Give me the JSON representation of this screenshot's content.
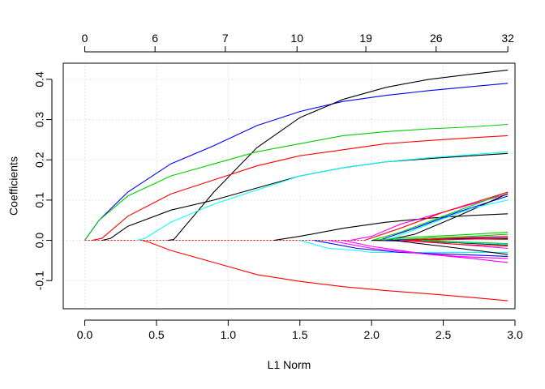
{
  "chart_data": {
    "type": "line",
    "title": "",
    "xlabel": "L1 Norm",
    "ylabel": "Coefficients",
    "xlim": [
      -0.15,
      3.0
    ],
    "ylim": [
      -0.17,
      0.44
    ],
    "grid": true,
    "x_ticks": [
      {
        "value": 0.0,
        "label": "0.0"
      },
      {
        "value": 0.5,
        "label": "0.5"
      },
      {
        "value": 1.0,
        "label": "1.0"
      },
      {
        "value": 1.5,
        "label": "1.5"
      },
      {
        "value": 2.0,
        "label": "2.0"
      },
      {
        "value": 2.5,
        "label": "2.5"
      },
      {
        "value": 3.0,
        "label": "3.0"
      }
    ],
    "y_ticks": [
      {
        "value": -0.1,
        "label": "-0.1"
      },
      {
        "value": 0.0,
        "label": "0.0"
      },
      {
        "value": 0.1,
        "label": "0.1"
      },
      {
        "value": 0.2,
        "label": "0.2"
      },
      {
        "value": 0.3,
        "label": "0.3"
      },
      {
        "value": 0.4,
        "label": "0.4"
      }
    ],
    "top_ticks": [
      {
        "value": 0.0,
        "label": "0"
      },
      {
        "value": 0.49,
        "label": "6"
      },
      {
        "value": 0.98,
        "label": "7"
      },
      {
        "value": 1.48,
        "label": "10"
      },
      {
        "value": 1.96,
        "label": "19"
      },
      {
        "value": 2.45,
        "label": "26"
      },
      {
        "value": 2.95,
        "label": "32"
      }
    ],
    "series": [
      {
        "color": "#0000ff",
        "x": [
          0,
          0.1,
          0.3,
          0.6,
          0.9,
          1.2,
          1.5,
          1.8,
          2.1,
          2.4,
          2.7,
          2.95
        ],
        "y": [
          0,
          0.05,
          0.12,
          0.19,
          0.235,
          0.285,
          0.32,
          0.345,
          0.36,
          0.372,
          0.382,
          0.39
        ]
      },
      {
        "color": "#000000",
        "x": [
          0.58,
          0.62,
          0.9,
          1.2,
          1.5,
          1.8,
          2.1,
          2.4,
          2.7,
          2.95
        ],
        "y": [
          0,
          0.002,
          0.12,
          0.23,
          0.305,
          0.35,
          0.38,
          0.4,
          0.413,
          0.423
        ]
      },
      {
        "color": "#00cd00",
        "x": [
          0,
          0.1,
          0.3,
          0.6,
          0.9,
          1.2,
          1.5,
          1.8,
          2.1,
          2.4,
          2.7,
          2.95
        ],
        "y": [
          0,
          0.05,
          0.11,
          0.16,
          0.19,
          0.22,
          0.24,
          0.26,
          0.27,
          0.277,
          0.282,
          0.288
        ]
      },
      {
        "color": "#ff0000",
        "x": [
          0.05,
          0.12,
          0.3,
          0.6,
          0.9,
          1.2,
          1.5,
          1.8,
          2.1,
          2.4,
          2.7,
          2.95
        ],
        "y": [
          0,
          0.005,
          0.06,
          0.115,
          0.15,
          0.185,
          0.21,
          0.225,
          0.24,
          0.248,
          0.255,
          0.26
        ]
      },
      {
        "color": "#000000",
        "x": [
          0.12,
          0.18,
          0.3,
          0.6,
          0.9,
          1.2,
          1.5,
          1.8,
          2.1,
          2.4,
          2.7,
          2.95
        ],
        "y": [
          0,
          0.005,
          0.035,
          0.075,
          0.1,
          0.13,
          0.16,
          0.18,
          0.195,
          0.203,
          0.21,
          0.216
        ]
      },
      {
        "color": "#00ffff",
        "x": [
          0.36,
          0.42,
          0.6,
          0.9,
          1.2,
          1.5,
          1.8,
          2.1,
          2.4,
          2.7,
          2.95
        ],
        "y": [
          0,
          0.005,
          0.045,
          0.09,
          0.125,
          0.16,
          0.18,
          0.195,
          0.205,
          0.213,
          0.22
        ]
      },
      {
        "color": "#ff0000",
        "x": [
          0.4,
          0.45,
          0.6,
          0.9,
          1.2,
          1.5,
          1.8,
          2.1,
          2.4,
          2.7,
          2.95
        ],
        "y": [
          0,
          -0.005,
          -0.025,
          -0.055,
          -0.085,
          -0.102,
          -0.115,
          -0.125,
          -0.133,
          -0.142,
          -0.15
        ]
      },
      {
        "color": "#000000",
        "x": [
          1.32,
          1.5,
          1.8,
          2.1,
          2.4,
          2.7,
          2.95
        ],
        "y": [
          0,
          0.01,
          0.03,
          0.045,
          0.055,
          0.062,
          0.066
        ]
      },
      {
        "color": "#00ffff",
        "x": [
          1.5,
          1.7,
          1.9,
          2.0,
          2.3,
          2.6,
          2.95
        ],
        "y": [
          0,
          -0.02,
          -0.025,
          -0.03,
          -0.03,
          -0.03,
          -0.03
        ]
      },
      {
        "color": "#ff00ff",
        "x": [
          1.85,
          2.0,
          2.2,
          2.4,
          2.6,
          2.8,
          2.95
        ],
        "y": [
          0,
          0.01,
          0.04,
          0.06,
          0.08,
          0.1,
          0.115
        ]
      },
      {
        "color": "#00cd00",
        "x": [
          2.0,
          2.2,
          2.5,
          2.95
        ],
        "y": [
          0,
          0.02,
          0.06,
          0.12
        ]
      },
      {
        "color": "#0000ff",
        "x": [
          2.05,
          2.3,
          2.6,
          2.95
        ],
        "y": [
          0,
          0.03,
          0.07,
          0.11
        ]
      },
      {
        "color": "#000000",
        "x": [
          2.1,
          2.3,
          2.6,
          2.95
        ],
        "y": [
          0,
          0.015,
          0.06,
          0.116
        ]
      },
      {
        "color": "#ff0000",
        "x": [
          1.95,
          2.2,
          2.5,
          2.95
        ],
        "y": [
          0,
          0.03,
          0.07,
          0.12
        ]
      },
      {
        "color": "#00ffff",
        "x": [
          2.1,
          2.4,
          2.7,
          2.95
        ],
        "y": [
          0,
          0.04,
          0.08,
          0.1
        ]
      },
      {
        "color": "#ff00ff",
        "x": [
          1.8,
          2.0,
          2.3,
          2.6,
          2.95
        ],
        "y": [
          0,
          -0.015,
          -0.03,
          -0.04,
          -0.045
        ]
      },
      {
        "color": "#0000ff",
        "x": [
          1.6,
          1.9,
          2.2,
          2.6,
          2.95
        ],
        "y": [
          0,
          -0.02,
          -0.03,
          -0.035,
          -0.04
        ]
      },
      {
        "color": "#ff00ff",
        "x": [
          1.7,
          2.0,
          2.4,
          2.7,
          2.95
        ],
        "y": [
          0,
          -0.02,
          -0.035,
          -0.045,
          -0.055
        ]
      },
      {
        "color": "#00cd00",
        "x": [
          2.0,
          2.3,
          2.6,
          2.95
        ],
        "y": [
          0,
          0.008,
          0.013,
          0.02
        ]
      },
      {
        "color": "#00cd00",
        "x": [
          2.1,
          2.4,
          2.7,
          2.95
        ],
        "y": [
          0,
          0.006,
          0.01,
          0.015
        ]
      },
      {
        "color": "#000000",
        "x": [
          2.2,
          2.5,
          2.95
        ],
        "y": [
          0,
          0.004,
          0.003
        ]
      },
      {
        "color": "#000000",
        "x": [
          2.0,
          2.4,
          2.7,
          2.95
        ],
        "y": [
          0,
          -0.003,
          -0.008,
          -0.012
        ]
      },
      {
        "color": "#0000ff",
        "x": [
          2.1,
          2.5,
          2.95
        ],
        "y": [
          0,
          0.004,
          0.006
        ]
      },
      {
        "color": "#ff0000",
        "x": [
          2.2,
          2.6,
          2.95
        ],
        "y": [
          0,
          0.006,
          0.01
        ]
      },
      {
        "color": "#ff00ff",
        "x": [
          2.2,
          2.6,
          2.95
        ],
        "y": [
          0,
          -0.01,
          -0.02
        ]
      },
      {
        "color": "#00ffff",
        "x": [
          2.3,
          2.6,
          2.95
        ],
        "y": [
          0,
          -0.005,
          -0.01
        ]
      },
      {
        "color": "#ff0000",
        "x": [
          2.25,
          2.6,
          2.95
        ],
        "y": [
          0,
          -0.01,
          -0.015
        ]
      },
      {
        "color": "#000000",
        "x": [
          2.15,
          2.5,
          2.95
        ],
        "y": [
          0,
          -0.015,
          -0.035
        ]
      },
      {
        "color": "#ff0000",
        "x": [
          2.3,
          2.7,
          2.95
        ],
        "y": [
          0,
          0.003,
          0.005
        ]
      },
      {
        "color": "#00cd00",
        "x": [
          2.35,
          2.7,
          2.95
        ],
        "y": [
          0,
          -0.005,
          -0.008
        ]
      }
    ]
  }
}
